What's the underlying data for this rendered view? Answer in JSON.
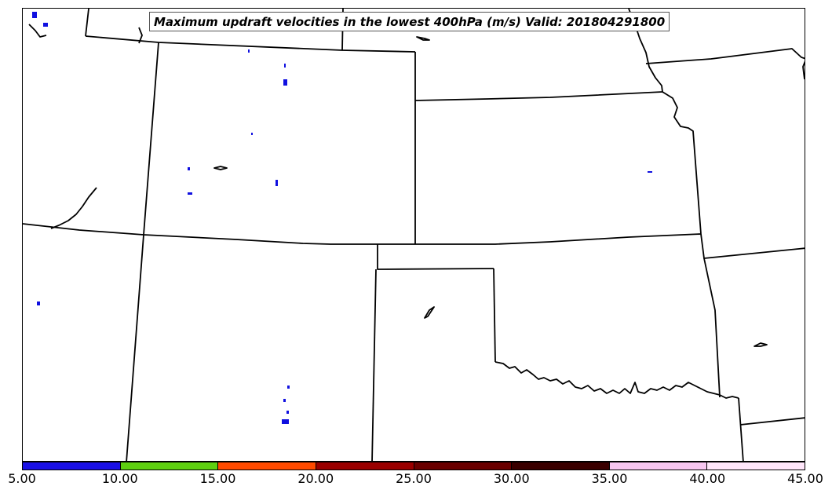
{
  "map": {
    "title": "Maximum updraft velocities in the lowest 400hPa (m/s) Valid: 201804291800",
    "region": "US Central Plains and Rockies",
    "boundary_color": "#000000",
    "updraft_cell_color": "#1010e0"
  },
  "colorbar": {
    "segments": [
      {
        "from": 5,
        "to": 10,
        "color": "#1a10e6"
      },
      {
        "from": 10,
        "to": 15,
        "color": "#5ecf10"
      },
      {
        "from": 15,
        "to": 20,
        "color": "#ff4a00"
      },
      {
        "from": 20,
        "to": 25,
        "color": "#9a0000"
      },
      {
        "from": 25,
        "to": 30,
        "color": "#6a0000"
      },
      {
        "from": 30,
        "to": 35,
        "color": "#3a0000"
      },
      {
        "from": 35,
        "to": 40,
        "color": "#f7c6f0"
      },
      {
        "from": 40,
        "to": 45,
        "color": "#ffe6fa"
      }
    ],
    "tick_labels": [
      "5.00",
      "10.00",
      "15.00",
      "20.00",
      "25.00",
      "30.00",
      "35.00",
      "40.00",
      "45.00"
    ]
  }
}
